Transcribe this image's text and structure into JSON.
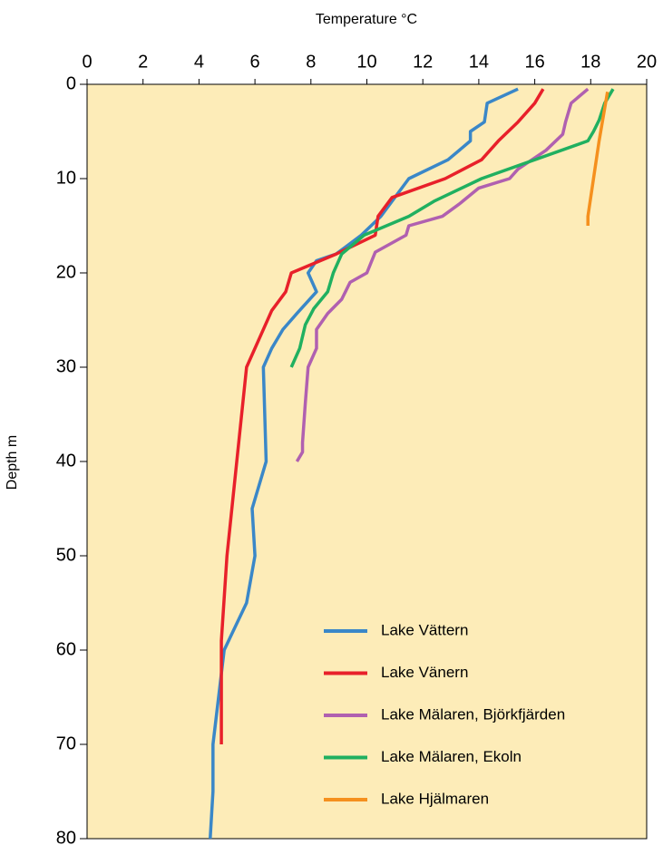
{
  "chart_data": {
    "type": "line",
    "xlabel": "Temperature °C",
    "ylabel": "Depth m",
    "xlim": [
      0,
      20
    ],
    "xticks": [
      0,
      2,
      4,
      6,
      8,
      10,
      12,
      14,
      16,
      18,
      20
    ],
    "ylim": [
      0,
      80
    ],
    "yticks": [
      0,
      10,
      20,
      30,
      40,
      50,
      60,
      70,
      80
    ],
    "invert_y": true,
    "x_axis_position": "top",
    "background": "#fdecb8",
    "legend": "lower right",
    "series": [
      {
        "name": "Lake Vättern",
        "color": "#3a87c8",
        "x": [
          15.4,
          14.3,
          14.2,
          13.7,
          13.7,
          12.9,
          11.5,
          10.5,
          9.8,
          8.9,
          8.2,
          7.9,
          8.2,
          7.5,
          7,
          6.6,
          6.3,
          6.4,
          5.9,
          6,
          5.7,
          4.9,
          4.5,
          4.5,
          4.4
        ],
        "values": [
          0.5,
          2,
          4,
          5,
          6,
          8,
          10,
          14,
          16,
          18,
          18.7,
          20,
          22,
          24.3,
          26,
          28,
          30,
          40,
          45,
          50,
          55,
          60,
          70,
          75,
          80
        ]
      },
      {
        "name": "Lake Vänern",
        "color": "#e8202a",
        "x": [
          16.3,
          16,
          15.4,
          14.7,
          14.1,
          12.8,
          10.9,
          10.4,
          10.3,
          8.9,
          7.3,
          7.1,
          6.6,
          5.7,
          5,
          4.8,
          4.8
        ],
        "values": [
          0.5,
          2,
          4,
          6,
          8,
          10,
          12,
          14,
          16,
          18,
          20,
          22,
          24,
          30,
          50,
          59,
          70
        ]
      },
      {
        "name": "Lake Mälaren, Björkfjärden",
        "color": "#b060b0",
        "x": [
          17.9,
          17.3,
          17.1,
          17,
          16.4,
          15.4,
          15.1,
          14,
          13.3,
          12.7,
          11.5,
          11.4,
          10.3,
          10,
          9.4,
          9.1,
          8.6,
          8.2,
          8.2,
          7.9,
          7.8,
          7.7,
          7.7,
          7.5
        ],
        "values": [
          0.5,
          2,
          4,
          5.3,
          7,
          9,
          10,
          11,
          12.7,
          14,
          15,
          16,
          17.8,
          20,
          21,
          22.8,
          24.3,
          26,
          28,
          30,
          33.8,
          38,
          39,
          40
        ]
      },
      {
        "name": "Lake Mälaren, Ekoln",
        "color": "#20b060",
        "x": [
          18.8,
          18.5,
          18.3,
          18.1,
          17.9,
          14.1,
          12.4,
          11.5,
          9.9,
          9.1,
          8.8,
          8.6,
          8.1,
          7.8,
          7.6,
          7.3
        ],
        "values": [
          0.5,
          2,
          3.8,
          5,
          6,
          10,
          12.4,
          14,
          16,
          18,
          20,
          22,
          23.8,
          25.5,
          28,
          30
        ]
      },
      {
        "name": "Lake Hjälmaren",
        "color": "#f5901e",
        "x": [
          18.6,
          18.3,
          17.9,
          17.9
        ],
        "values": [
          0.8,
          6,
          14,
          15
        ]
      }
    ]
  }
}
